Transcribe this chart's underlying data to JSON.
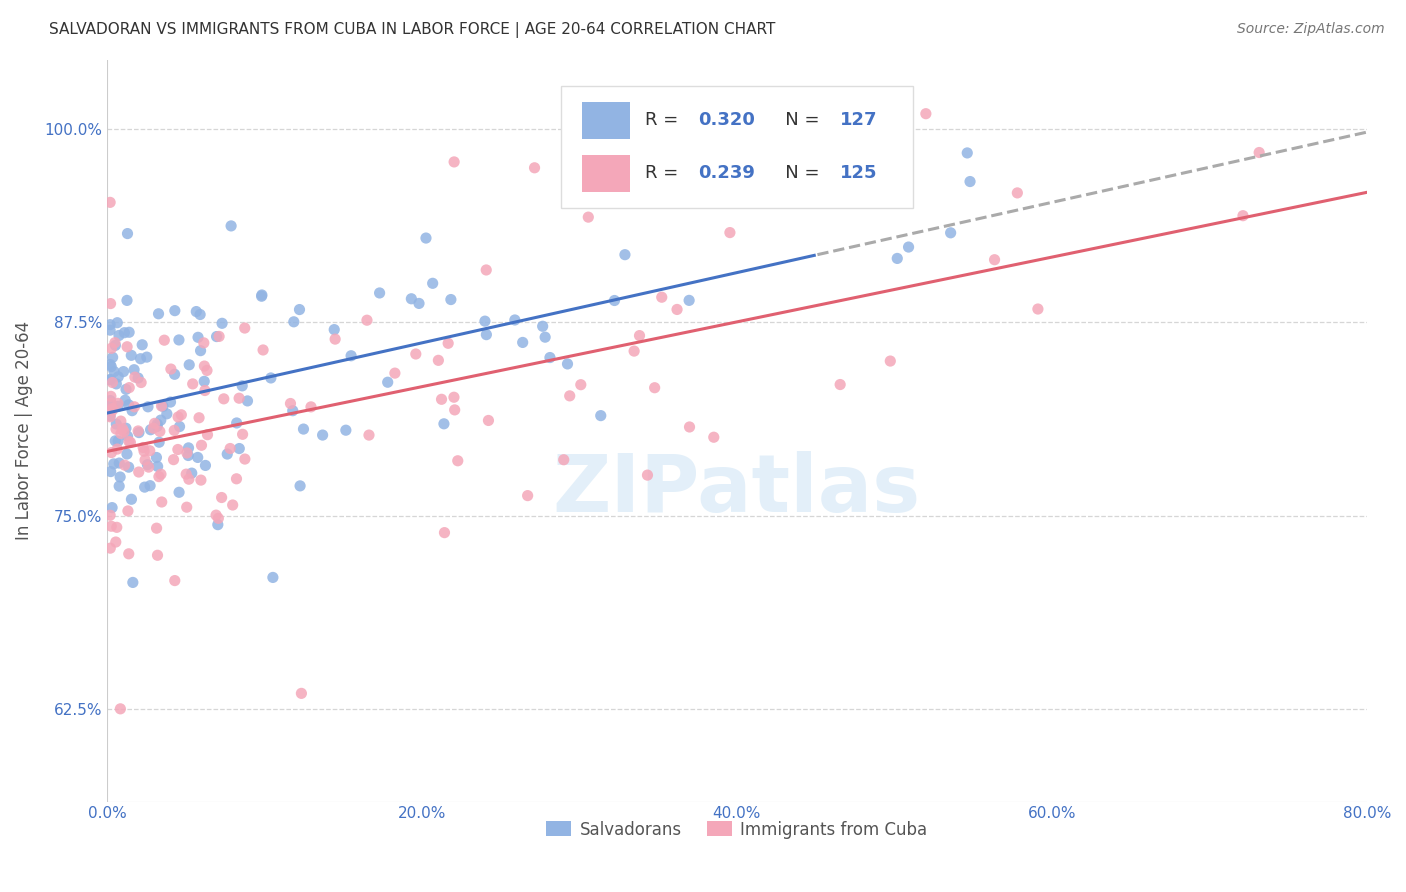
{
  "title": "SALVADORAN VS IMMIGRANTS FROM CUBA IN LABOR FORCE | AGE 20-64 CORRELATION CHART",
  "source": "Source: ZipAtlas.com",
  "ylabel": "In Labor Force | Age 20-64",
  "x_tick_labels": [
    "0.0%",
    "20.0%",
    "40.0%",
    "60.0%",
    "80.0%"
  ],
  "x_tick_vals": [
    0.0,
    0.2,
    0.4,
    0.6,
    0.8
  ],
  "y_tick_labels": [
    "62.5%",
    "75.0%",
    "87.5%",
    "100.0%"
  ],
  "y_tick_vals": [
    0.625,
    0.75,
    0.875,
    1.0
  ],
  "xlim": [
    0.0,
    0.8
  ],
  "ylim": [
    0.565,
    1.045
  ],
  "legend_R_blue": "0.320",
  "legend_N_blue": "127",
  "legend_R_pink": "0.239",
  "legend_N_pink": "125",
  "blue_color": "#92b4e3",
  "pink_color": "#f4a7b9",
  "trend_blue_solid": "#4472c4",
  "trend_blue_dash": "#aaaaaa",
  "trend_pink": "#e06070",
  "watermark": "ZIPatlas",
  "legend_labels": [
    "Salvadorans",
    "Immigrants from Cuba"
  ],
  "blue_seed": 42,
  "pink_seed": 17
}
